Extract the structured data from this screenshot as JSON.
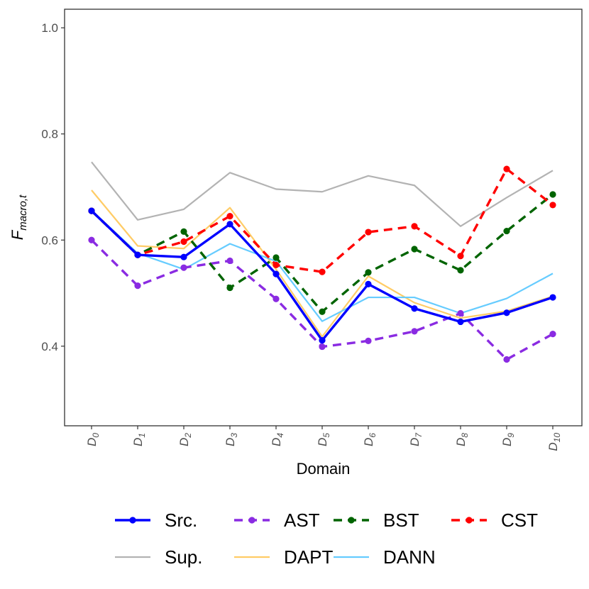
{
  "chart_data": {
    "type": "line",
    "xlabel": "Domain",
    "ylabel_main": "F",
    "ylabel_sub": "macro,t",
    "ylim": [
      0.25,
      1.035
    ],
    "yticks": [
      0.4,
      0.6,
      0.8,
      1.0
    ],
    "ytick_labels": [
      "0.4",
      "0.6",
      "0.8",
      "1.0"
    ],
    "categories": [
      {
        "main": "D",
        "sub": "0"
      },
      {
        "main": "D",
        "sub": "1"
      },
      {
        "main": "D",
        "sub": "2"
      },
      {
        "main": "D",
        "sub": "3"
      },
      {
        "main": "D",
        "sub": "4"
      },
      {
        "main": "D",
        "sub": "5"
      },
      {
        "main": "D",
        "sub": "6"
      },
      {
        "main": "D",
        "sub": "7"
      },
      {
        "main": "D",
        "sub": "8"
      },
      {
        "main": "D",
        "sub": "9"
      },
      {
        "main": "D",
        "sub": "10"
      }
    ],
    "series": [
      {
        "name": "Sup.",
        "color": "#b3b3b3",
        "dashed": false,
        "markers": false,
        "thick": false,
        "values": [
          0.747,
          0.638,
          0.658,
          0.727,
          0.696,
          0.691,
          0.721,
          0.703,
          0.626,
          0.68,
          0.731
        ]
      },
      {
        "name": "DAPT",
        "color": "#ffcc66",
        "dashed": false,
        "markers": false,
        "thick": false,
        "values": [
          0.694,
          0.589,
          0.584,
          0.661,
          0.545,
          0.418,
          0.532,
          0.482,
          0.453,
          0.466,
          0.494
        ]
      },
      {
        "name": "DANN",
        "color": "#66ccff",
        "dashed": false,
        "markers": false,
        "thick": false,
        "values": [
          0.656,
          0.575,
          0.545,
          0.593,
          0.56,
          0.447,
          0.492,
          0.492,
          0.462,
          0.49,
          0.537
        ]
      },
      {
        "name": "AST",
        "color": "#8a2be2",
        "dashed": true,
        "markers": true,
        "thick": true,
        "values": [
          0.6,
          0.514,
          0.548,
          0.561,
          0.489,
          0.399,
          0.41,
          0.428,
          0.462,
          0.375,
          0.423
        ]
      },
      {
        "name": "BST",
        "color": "#006400",
        "dashed": true,
        "markers": true,
        "thick": true,
        "values": [
          0.655,
          0.572,
          0.616,
          0.51,
          0.567,
          0.465,
          0.539,
          0.583,
          0.543,
          0.617,
          0.686
        ]
      },
      {
        "name": "CST",
        "color": "#ff0000",
        "dashed": true,
        "markers": true,
        "thick": true,
        "values": [
          0.655,
          0.572,
          0.597,
          0.645,
          0.553,
          0.54,
          0.615,
          0.626,
          0.57,
          0.734,
          0.666
        ]
      },
      {
        "name": "Src.",
        "color": "#0000ff",
        "dashed": false,
        "markers": true,
        "thick": true,
        "values": [
          0.655,
          0.572,
          0.568,
          0.63,
          0.536,
          0.411,
          0.517,
          0.471,
          0.446,
          0.463,
          0.492
        ]
      }
    ],
    "legend": {
      "position": "bottom",
      "rows": [
        [
          "Src.",
          "AST",
          "BST",
          "CST"
        ],
        [
          "Sup.",
          "DAPT",
          "DANN"
        ]
      ]
    }
  }
}
